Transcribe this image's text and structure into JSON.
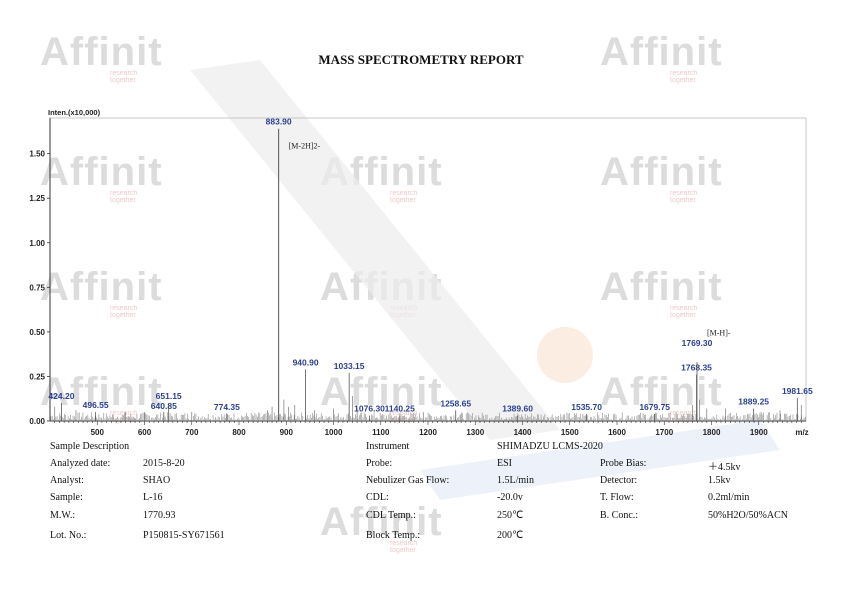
{
  "report": {
    "title": "MASS SPECTROMETRY REPORT",
    "watermark_word": "Affinit",
    "watermark_tagline": "research together"
  },
  "chart_data": {
    "type": "line",
    "ylabel": "Inten.(x10,000)",
    "xlabel": "m/z",
    "xlim": [
      400,
      2000
    ],
    "ylim": [
      0,
      1.7
    ],
    "x_ticks": [
      500,
      600,
      700,
      800,
      900,
      1000,
      1100,
      1200,
      1300,
      1400,
      1500,
      1600,
      1700,
      1800,
      1900
    ],
    "x_tick_labels": [
      "500",
      "600",
      "700",
      "800",
      "900",
      "1000",
      "1100",
      "1200",
      "1300",
      "1400",
      "1500",
      "1600",
      "1700",
      "1800",
      "1900"
    ],
    "y_ticks": [
      0.0,
      0.25,
      0.5,
      0.75,
      1.0,
      1.25,
      1.5
    ],
    "y_tick_labels": [
      "0.00",
      "0.25",
      "0.50",
      "0.75",
      "1.00",
      "1.25",
      "1.50"
    ],
    "grid": false,
    "peaks": [
      {
        "x": 424.2,
        "y": 0.1,
        "label": "424.20"
      },
      {
        "x": 496.55,
        "y": 0.05,
        "label": "496.55"
      },
      {
        "x": 640.85,
        "y": 0.05,
        "label": "640.85"
      },
      {
        "x": 651.15,
        "y": 0.09,
        "label": "651.15"
      },
      {
        "x": 774.35,
        "y": 0.04,
        "label": "774.35"
      },
      {
        "x": 883.9,
        "y": 1.64,
        "label": "883.90"
      },
      {
        "x": 940.9,
        "y": 0.29,
        "label": "940.90"
      },
      {
        "x": 1033.15,
        "y": 0.27,
        "label": "1033.15"
      },
      {
        "x": 1076.3,
        "y": 0.03,
        "label": "1076.30"
      },
      {
        "x": 1140.25,
        "y": 0.03,
        "label": "1140.25"
      },
      {
        "x": 1258.65,
        "y": 0.06,
        "label": "1258.65"
      },
      {
        "x": 1389.6,
        "y": 0.03,
        "label": "1389.60"
      },
      {
        "x": 1535.7,
        "y": 0.04,
        "label": "1535.70"
      },
      {
        "x": 1679.75,
        "y": 0.04,
        "label": "1679.75"
      },
      {
        "x": 1768.35,
        "y": 0.26,
        "label": "1768.35"
      },
      {
        "x": 1769.3,
        "y": 0.33,
        "label": "1769.30"
      },
      {
        "x": 1889.25,
        "y": 0.07,
        "label": "1889.25"
      },
      {
        "x": 1981.65,
        "y": 0.13,
        "label": "1981.65"
      }
    ],
    "annotations": [
      {
        "text": "[M-2H]2-",
        "x": 883.9,
        "y": 1.53
      },
      {
        "text": "[M-H]-",
        "x": 1769.3,
        "y": 0.48
      }
    ]
  },
  "info": {
    "sample_description": "Sample Description",
    "instrument_label": "Instrument",
    "instrument_value": "SHIMADZU LCMS-2020",
    "left_rows": [
      {
        "label": "Analyzed date:",
        "value": "2015-8-20"
      },
      {
        "label": "Analyst:",
        "value": "SHAO"
      },
      {
        "label": "Sample:",
        "value": "L-16"
      },
      {
        "label": "M.W.:",
        "value": "1770.93"
      },
      {
        "label": "Lot. No.:",
        "value": "P150815-SY671561"
      }
    ],
    "mid_rows": [
      {
        "label": "Probe:",
        "value": "ESI"
      },
      {
        "label": "Nebulizer Gas Flow:",
        "value": "1.5L/min"
      },
      {
        "label": "CDL:",
        "value": "-20.0v"
      },
      {
        "label": "CDL Temp.:",
        "value": "250℃"
      },
      {
        "label": "Block Temp.:",
        "value": "200℃"
      }
    ],
    "right_rows": [
      {
        "label": "Probe Bias:",
        "value": "＋4.5kv"
      },
      {
        "label": "Detector:",
        "value": "1.5kv"
      },
      {
        "label": "T. Flow:",
        "value": "0.2ml/min"
      },
      {
        "label": "B. Conc.:",
        "value": "50%H2O/50%ACN"
      }
    ]
  }
}
